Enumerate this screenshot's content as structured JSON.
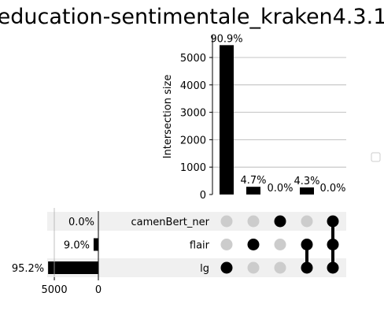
{
  "chart_data": {
    "type": "bar",
    "subtype": "upset",
    "title": "education-sentimentale_kraken4.3.1",
    "ylabel": "Intersection size",
    "ylim": [
      0,
      5800
    ],
    "yticks": [
      0,
      1000,
      2000,
      3000,
      4000,
      5000
    ],
    "grid": true,
    "intersections": [
      {
        "members": [
          "lg"
        ],
        "size": 5450,
        "label": "90.9%"
      },
      {
        "members": [
          "flair"
        ],
        "size": 282,
        "label": "4.7%"
      },
      {
        "members": [
          "camenBert_ner"
        ],
        "size": 0,
        "label": "0.0%"
      },
      {
        "members": [
          "flair",
          "lg"
        ],
        "size": 258,
        "label": "4.3%"
      },
      {
        "members": [
          "camenBert_ner",
          "flair",
          "lg"
        ],
        "size": 0,
        "label": "0.0%"
      }
    ],
    "sets": [
      {
        "name": "camenBert_ner",
        "size": 0,
        "label": "0.0%"
      },
      {
        "name": "flair",
        "size": 540,
        "label": "9.0%"
      },
      {
        "name": "lg",
        "size": 5708,
        "label": "95.2%"
      }
    ],
    "set_size_xticks": [
      5000,
      0
    ],
    "legend": {
      "placement": "right",
      "entries": []
    },
    "colors": {
      "bar": "#000000",
      "active_dot": "#000000",
      "inactive_dot": "#cccccc",
      "shade": "#f0f0f0",
      "grid": "#b0b0b0"
    }
  }
}
